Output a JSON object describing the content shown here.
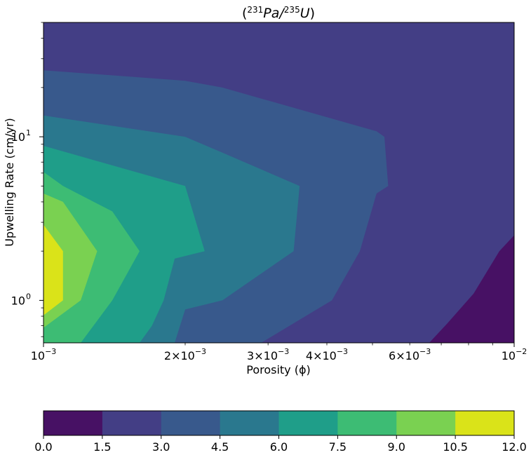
{
  "chart_data": {
    "type": "contour",
    "title_parts": {
      "open": "(",
      "num_sup": "231",
      "num": "Pa",
      "slash": "/",
      "den_sup": "235",
      "den": "U",
      "close": ")"
    },
    "xlabel": "Porosity (ϕ)",
    "ylabel": "Upwelling Rate (cm/yr)",
    "x_scale": "log",
    "y_scale": "log",
    "xlim": [
      0.001,
      0.01
    ],
    "ylim": [
      0.55,
      50
    ],
    "x_major_ticks": [
      {
        "value": 0.001,
        "mant": "10",
        "exp": "−3"
      },
      {
        "value": 0.01,
        "mant": "10",
        "exp": "−2"
      }
    ],
    "x_minor_labeled_ticks": [
      {
        "value": 0.002,
        "mant": "2×10",
        "exp": "−3"
      },
      {
        "value": 0.003,
        "mant": "3×10",
        "exp": "−3"
      },
      {
        "value": 0.004,
        "mant": "4×10",
        "exp": "−3"
      },
      {
        "value": 0.006,
        "mant": "6×10",
        "exp": "−3"
      }
    ],
    "y_major_ticks": [
      {
        "value": 1,
        "mant": "10",
        "exp": "0"
      },
      {
        "value": 10,
        "mant": "10",
        "exp": "1"
      }
    ],
    "levels": [
      0.0,
      1.5,
      3.0,
      4.5,
      6.0,
      7.5,
      9.0,
      10.5,
      12.0
    ],
    "level_labels": [
      "0.0",
      "1.5",
      "3.0",
      "4.5",
      "6.0",
      "7.5",
      "9.0",
      "10.5",
      "12.0"
    ],
    "colors": [
      "#471164",
      "#433e85",
      "#38598c",
      "#2a788e",
      "#1f9e89",
      "#3dbc74",
      "#7ad151",
      "#dae319"
    ],
    "regions": [
      {
        "level": 1,
        "points": [
          [
            0.001,
            50
          ],
          [
            0.01,
            50
          ],
          [
            0.01,
            2.5
          ],
          [
            0.0093,
            2.0
          ],
          [
            0.0082,
            1.1
          ],
          [
            0.0072,
            0.72
          ],
          [
            0.0066,
            0.55
          ],
          [
            0.001,
            0.55
          ]
        ]
      },
      {
        "level": 2,
        "points": [
          [
            0.001,
            25.5
          ],
          [
            0.002,
            22
          ],
          [
            0.0024,
            20
          ],
          [
            0.0051,
            10.8
          ],
          [
            0.0053,
            10
          ],
          [
            0.0054,
            5
          ],
          [
            0.0051,
            4.5
          ],
          [
            0.0047,
            2
          ],
          [
            0.0041,
            1
          ],
          [
            0.0029,
            0.55
          ],
          [
            0.001,
            0.55
          ]
        ]
      },
      {
        "level": 3,
        "points": [
          [
            0.001,
            13.5
          ],
          [
            0.002,
            10
          ],
          [
            0.0024,
            8
          ],
          [
            0.0035,
            5
          ],
          [
            0.0034,
            2
          ],
          [
            0.0024,
            1
          ],
          [
            0.002,
            0.88
          ],
          [
            0.0019,
            0.55
          ],
          [
            0.001,
            0.55
          ]
        ]
      },
      {
        "level": 4,
        "points": [
          [
            0.001,
            8.8
          ],
          [
            0.002,
            5
          ],
          [
            0.0022,
            2
          ],
          [
            0.0019,
            1.8
          ],
          [
            0.0018,
            1.0
          ],
          [
            0.0017,
            0.7
          ],
          [
            0.0016,
            0.55
          ],
          [
            0.001,
            0.55
          ]
        ]
      },
      {
        "level": 5,
        "points": [
          [
            0.001,
            6.1
          ],
          [
            0.0011,
            5
          ],
          [
            0.0014,
            3.5
          ],
          [
            0.0016,
            2.0
          ],
          [
            0.0014,
            1.0
          ],
          [
            0.0012,
            0.55
          ],
          [
            0.001,
            0.55
          ]
        ]
      },
      {
        "level": 6,
        "points": [
          [
            0.001,
            4.5
          ],
          [
            0.0011,
            4
          ],
          [
            0.0013,
            2.0
          ],
          [
            0.0012,
            1.0
          ],
          [
            0.001,
            0.68
          ]
        ]
      },
      {
        "level": 7,
        "points": [
          [
            0.001,
            2.9
          ],
          [
            0.0011,
            2.0
          ],
          [
            0.0011,
            1.0
          ],
          [
            0.001,
            0.81
          ]
        ]
      }
    ]
  }
}
